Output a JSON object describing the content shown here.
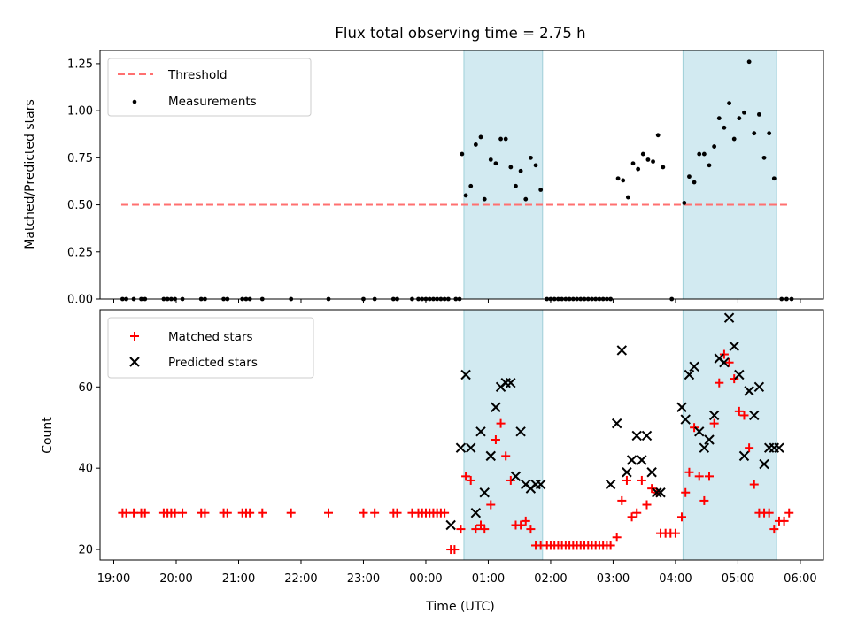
{
  "chart_data": [
    {
      "type": "scatter",
      "panel": "top",
      "title": "Flux total observing time = 2.75 h",
      "xlabel": "",
      "ylabel": "Matched/Predicted stars",
      "ylim": [
        0,
        1.32
      ],
      "yticks": [
        0.0,
        0.25,
        0.5,
        0.75,
        1.0,
        1.25
      ],
      "ytick_labels": [
        "0.00",
        "0.25",
        "0.50",
        "0.75",
        "1.00",
        "1.25"
      ],
      "xlim_hours": [
        18.78,
        30.37
      ],
      "x_unit": "hours since 00:00 UTC of the first night",
      "grid": false,
      "legend": "top-left",
      "shaded_intervals": [
        [
          24.61,
          25.87
        ],
        [
          28.12,
          29.62
        ]
      ],
      "colors": {
        "threshold": "#ff7070",
        "measurements": "#000000",
        "shade": "#add8e6"
      },
      "series": [
        {
          "name": "Threshold",
          "kind": "dashed-line",
          "x": [
            19.12,
            29.82
          ],
          "y": [
            0.5,
            0.5
          ]
        },
        {
          "name": "Measurements",
          "kind": "points",
          "x": [
            19.14,
            19.2,
            19.32,
            19.44,
            19.5,
            19.8,
            19.86,
            19.92,
            19.98,
            20.1,
            20.4,
            20.46,
            20.76,
            20.82,
            21.06,
            21.12,
            21.18,
            21.38,
            21.84,
            22.44,
            23.0,
            23.18,
            23.48,
            23.54,
            23.78,
            23.88,
            23.94,
            24.0,
            24.06,
            24.12,
            24.18,
            24.24,
            24.3,
            24.36,
            24.48,
            24.54,
            24.58,
            24.64,
            24.72,
            24.8,
            24.88,
            24.94,
            25.04,
            25.12,
            25.2,
            25.28,
            25.36,
            25.44,
            25.52,
            25.6,
            25.68,
            25.76,
            25.84,
            25.94,
            26.0,
            26.06,
            26.12,
            26.18,
            26.24,
            26.3,
            26.36,
            26.42,
            26.48,
            26.54,
            26.6,
            26.66,
            26.72,
            26.78,
            26.84,
            26.9,
            26.96,
            27.08,
            27.16,
            27.24,
            27.32,
            27.4,
            27.48,
            27.56,
            27.64,
            27.72,
            27.8,
            27.94,
            28.14,
            28.22,
            28.3,
            28.38,
            28.46,
            28.54,
            28.62,
            28.7,
            28.78,
            28.86,
            28.94,
            29.02,
            29.1,
            29.18,
            29.26,
            29.34,
            29.42,
            29.5,
            29.58,
            29.7,
            29.78,
            29.86
          ],
          "y": [
            0,
            0,
            0,
            0,
            0,
            0,
            0,
            0,
            0,
            0,
            0,
            0,
            0,
            0,
            0,
            0,
            0,
            0,
            0,
            0,
            0,
            0,
            0,
            0,
            0,
            0,
            0,
            0,
            0,
            0,
            0,
            0,
            0,
            0,
            0,
            0,
            0.77,
            0.55,
            0.6,
            0.82,
            0.86,
            0.53,
            0.74,
            0.72,
            0.85,
            0.85,
            0.7,
            0.6,
            0.68,
            0.53,
            0.75,
            0.71,
            0.58,
            0,
            0,
            0,
            0,
            0,
            0,
            0,
            0,
            0,
            0,
            0,
            0,
            0,
            0,
            0,
            0,
            0,
            0,
            0.64,
            0.63,
            0.54,
            0.72,
            0.69,
            0.77,
            0.74,
            0.73,
            0.87,
            0.7,
            0,
            0.51,
            0.65,
            0.62,
            0.77,
            0.77,
            0.71,
            0.81,
            0.96,
            0.91,
            1.04,
            0.85,
            0.96,
            0.99,
            1.26,
            0.88,
            0.98,
            0.75,
            0.88,
            0.64,
            0,
            0,
            0
          ]
        }
      ]
    },
    {
      "type": "scatter",
      "panel": "bottom",
      "title": "",
      "xlabel": "Time (UTC)",
      "ylabel": "Count",
      "ylim": [
        17.4,
        79.0
      ],
      "yticks": [
        20,
        40,
        60
      ],
      "ytick_labels": [
        "20",
        "40",
        "60"
      ],
      "xlim_hours": [
        18.78,
        30.37
      ],
      "xticks_hours": [
        19,
        20,
        21,
        22,
        23,
        24,
        25,
        26,
        27,
        28,
        29,
        30
      ],
      "xtick_labels": [
        "19:00",
        "20:00",
        "21:00",
        "22:00",
        "23:00",
        "00:00",
        "01:00",
        "02:00",
        "03:00",
        "04:00",
        "05:00",
        "06:00"
      ],
      "grid": false,
      "legend": "top-left",
      "shaded_intervals": [
        [
          24.61,
          25.87
        ],
        [
          28.12,
          29.62
        ]
      ],
      "colors": {
        "matched": "#ff0000",
        "predicted": "#000000",
        "shade": "#add8e6"
      },
      "series": [
        {
          "name": "Matched stars",
          "marker": "plus",
          "x": [
            19.14,
            19.2,
            19.32,
            19.44,
            19.5,
            19.8,
            19.86,
            19.92,
            19.98,
            20.1,
            20.4,
            20.46,
            20.76,
            20.82,
            21.06,
            21.12,
            21.18,
            21.38,
            21.84,
            22.44,
            23.0,
            23.18,
            23.48,
            23.54,
            23.78,
            23.88,
            23.94,
            24.0,
            24.06,
            24.12,
            24.18,
            24.24,
            24.3,
            24.4,
            24.46,
            24.56,
            24.64,
            24.72,
            24.8,
            24.88,
            24.94,
            25.04,
            25.12,
            25.2,
            25.28,
            25.36,
            25.44,
            25.52,
            25.6,
            25.68,
            25.76,
            25.84,
            25.94,
            26.0,
            26.06,
            26.12,
            26.18,
            26.24,
            26.3,
            26.36,
            26.42,
            26.48,
            26.54,
            26.6,
            26.66,
            26.72,
            26.78,
            26.84,
            26.9,
            26.96,
            27.06,
            27.14,
            27.22,
            27.3,
            27.38,
            27.46,
            27.54,
            27.62,
            27.7,
            27.76,
            27.84,
            27.92,
            28.0,
            28.1,
            28.16,
            28.22,
            28.3,
            28.38,
            28.46,
            28.54,
            28.62,
            28.7,
            28.78,
            28.86,
            28.94,
            29.02,
            29.1,
            29.18,
            29.26,
            29.34,
            29.42,
            29.5,
            29.58,
            29.66,
            29.74,
            29.82
          ],
          "y": [
            29,
            29,
            29,
            29,
            29,
            29,
            29,
            29,
            29,
            29,
            29,
            29,
            29,
            29,
            29,
            29,
            29,
            29,
            29,
            29,
            29,
            29,
            29,
            29,
            29,
            29,
            29,
            29,
            29,
            29,
            29,
            29,
            29,
            20,
            20,
            25,
            38,
            37,
            25,
            26,
            25,
            31,
            47,
            51,
            43,
            37,
            26,
            26,
            27,
            25,
            21,
            21,
            21,
            21,
            21,
            21,
            21,
            21,
            21,
            21,
            21,
            21,
            21,
            21,
            21,
            21,
            21,
            21,
            21,
            21,
            23,
            32,
            37,
            28,
            29,
            37,
            31,
            35,
            34,
            24,
            24,
            24,
            24,
            28,
            34,
            39,
            50,
            38,
            32,
            38,
            51,
            61,
            68,
            66,
            62,
            54,
            53,
            45,
            36,
            29,
            29,
            29,
            25,
            27,
            27,
            29
          ],
          "_note_": "y values continue pattern; trailing elements trimmed to x length"
        },
        {
          "name": "Predicted stars",
          "marker": "x",
          "x": [
            24.4,
            24.56,
            24.64,
            24.72,
            24.8,
            24.88,
            24.94,
            25.04,
            25.12,
            25.2,
            25.28,
            25.36,
            25.44,
            25.52,
            25.6,
            25.68,
            25.76,
            25.84,
            26.96,
            27.06,
            27.14,
            27.22,
            27.3,
            27.38,
            27.46,
            27.54,
            27.62,
            27.7,
            27.76,
            28.1,
            28.16,
            28.22,
            28.3,
            28.38,
            28.46,
            28.54,
            28.62,
            28.7,
            28.78,
            28.86,
            28.94,
            29.02,
            29.1,
            29.18,
            29.26,
            29.34,
            29.42,
            29.5,
            29.58,
            29.66
          ],
          "y": [
            26,
            45,
            63,
            45,
            29,
            49,
            34,
            43,
            55,
            60,
            61,
            61,
            38,
            49,
            36,
            35,
            36,
            36,
            36,
            51,
            69,
            39,
            42,
            48,
            42,
            48,
            39,
            34,
            34,
            55,
            52,
            63,
            65,
            49,
            45,
            47,
            53,
            67,
            66,
            77,
            70,
            63,
            43,
            59,
            53,
            60,
            41,
            45,
            45,
            45
          ]
        }
      ]
    }
  ]
}
